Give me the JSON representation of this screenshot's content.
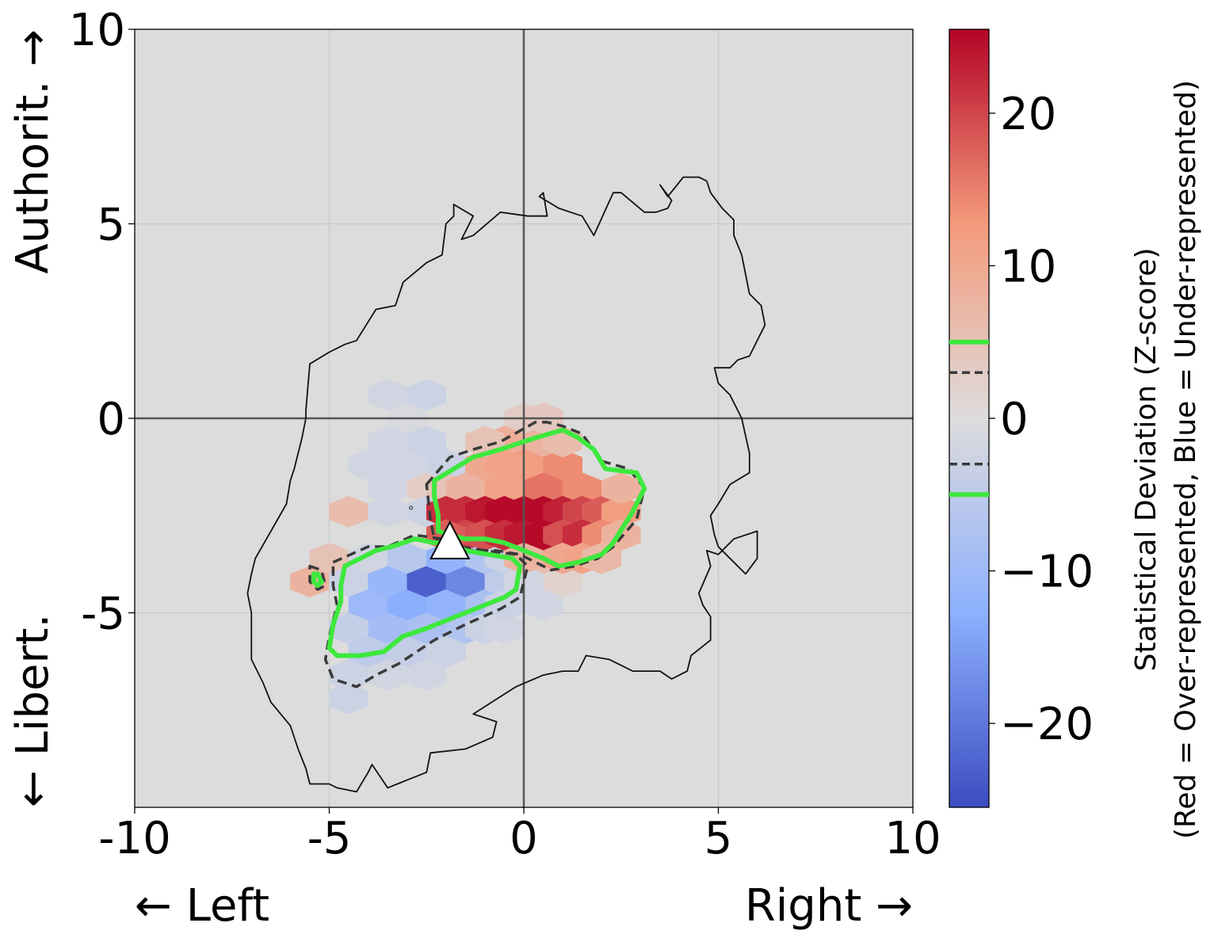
{
  "chart_data": {
    "type": "heatmap",
    "subtype": "hexbin",
    "xlim": [
      -10,
      10
    ],
    "ylim": [
      -10,
      10
    ],
    "x_ticks": [
      "-10",
      "-5",
      "0",
      "5",
      "10"
    ],
    "y_ticks": [
      "-5",
      "0",
      "5",
      "10"
    ],
    "x_tick_values": [
      -10,
      -5,
      0,
      5,
      10
    ],
    "y_tick_values": [
      -5,
      0,
      5,
      10
    ],
    "x_label_left": "← Left",
    "x_label_right": "Right →",
    "y_label_top": "Authorit. →",
    "y_label_bottom": "← Libert.",
    "grid": true,
    "background": "#dcdcdc",
    "zero_lines": true,
    "colormap": "coolwarm",
    "colorbar": {
      "range": [
        -25.5,
        25.5
      ],
      "ticks": [
        20,
        10,
        0,
        -10,
        -20
      ],
      "tick_labels": [
        "20",
        "10",
        "0",
        "−10",
        "−20"
      ],
      "label_line1": "Statistical Deviation (Z-score)",
      "label_line2": "(Red = Over-represented, Blue = Under-represented)",
      "threshold_solid": 5,
      "threshold_dashed": 3
    },
    "hex_cells": [
      [
        -3.5,
        0.6,
        -2
      ],
      [
        -3.5,
        -0.6,
        -2
      ],
      [
        -3.0,
        0.0,
        -1
      ],
      [
        -2.5,
        0.6,
        -3
      ],
      [
        -2.5,
        -0.6,
        -3
      ],
      [
        -4.0,
        -1.2,
        -2
      ],
      [
        -3.0,
        -1.2,
        -2
      ],
      [
        -2.0,
        -1.2,
        -3
      ],
      [
        -3.5,
        -1.8,
        -2
      ],
      [
        -2.5,
        -1.8,
        3
      ],
      [
        -4.5,
        -2.4,
        6
      ],
      [
        -3.5,
        -2.4,
        -2
      ],
      [
        -2.5,
        -2.4,
        -3
      ],
      [
        -5.0,
        -3.6,
        5
      ],
      [
        -5.5,
        -4.2,
        8
      ],
      [
        -4.5,
        -4.2,
        -3
      ],
      [
        -4.0,
        -3.6,
        -2
      ],
      [
        -3.0,
        -3.6,
        -6
      ],
      [
        -4.0,
        -4.8,
        -10
      ],
      [
        -3.5,
        -4.2,
        -11
      ],
      [
        -3.0,
        -4.8,
        -13
      ],
      [
        -2.5,
        -4.2,
        -23
      ],
      [
        -2.0,
        -4.8,
        -12
      ],
      [
        -1.5,
        -4.2,
        -18
      ],
      [
        -1.0,
        -4.8,
        -8
      ],
      [
        -0.5,
        -4.2,
        -5
      ],
      [
        -2.0,
        -3.6,
        -12
      ],
      [
        -1.0,
        -3.6,
        -7
      ],
      [
        -3.5,
        -5.4,
        -9
      ],
      [
        -2.5,
        -5.4,
        -8
      ],
      [
        -1.5,
        -5.4,
        -7
      ],
      [
        -4.5,
        -5.4,
        -4
      ],
      [
        -4.0,
        -6.0,
        -5
      ],
      [
        -3.0,
        -6.0,
        -4
      ],
      [
        -2.0,
        -6.0,
        -3
      ],
      [
        -1.0,
        -5.4,
        -3
      ],
      [
        -0.5,
        -5.4,
        -2
      ],
      [
        -4.5,
        -6.6,
        -3
      ],
      [
        -3.5,
        -6.6,
        -2
      ],
      [
        -2.5,
        -6.6,
        -2
      ],
      [
        -4.5,
        -7.2,
        -3
      ],
      [
        -0.5,
        -3.6,
        -3
      ],
      [
        0.5,
        -3.6,
        6
      ],
      [
        1.0,
        -4.2,
        2
      ],
      [
        0.0,
        -4.2,
        -2
      ],
      [
        0.5,
        -4.8,
        -2
      ],
      [
        -0.5,
        -4.8,
        -3
      ],
      [
        0.0,
        0.0,
        3
      ],
      [
        -0.5,
        -0.6,
        9
      ],
      [
        0.5,
        -0.6,
        8
      ],
      [
        -1.0,
        -1.2,
        10
      ],
      [
        0.0,
        -1.2,
        12
      ],
      [
        1.0,
        -1.2,
        14
      ],
      [
        -2.0,
        -1.8,
        5
      ],
      [
        -1.5,
        -1.8,
        8
      ],
      [
        -0.5,
        -1.8,
        11
      ],
      [
        0.5,
        -1.8,
        16
      ],
      [
        1.5,
        -1.8,
        14
      ],
      [
        -0.5,
        -1.2,
        11
      ],
      [
        -2.0,
        -2.4,
        22
      ],
      [
        -1.5,
        -2.4,
        22
      ],
      [
        -1.0,
        -2.4,
        24
      ],
      [
        -0.5,
        -2.4,
        25
      ],
      [
        0.0,
        -2.4,
        25
      ],
      [
        0.5,
        -2.4,
        25
      ],
      [
        1.0,
        -2.4,
        23
      ],
      [
        1.5,
        -2.4,
        20
      ],
      [
        2.0,
        -2.4,
        18
      ],
      [
        2.5,
        -2.4,
        12
      ],
      [
        -1.5,
        -3.0,
        20
      ],
      [
        -1.0,
        -3.0,
        19
      ],
      [
        -0.5,
        -3.0,
        22
      ],
      [
        0.0,
        -3.0,
        24
      ],
      [
        0.5,
        -3.0,
        25
      ],
      [
        1.0,
        -3.0,
        19
      ],
      [
        1.5,
        -3.0,
        22
      ],
      [
        2.0,
        -3.0,
        14
      ],
      [
        2.5,
        -3.0,
        8
      ],
      [
        -2.0,
        -3.0,
        18
      ],
      [
        0.0,
        -3.6,
        8
      ],
      [
        1.0,
        -3.6,
        10
      ],
      [
        1.5,
        -3.6,
        11
      ],
      [
        2.0,
        -3.6,
        7
      ],
      [
        2.5,
        -1.8,
        8
      ],
      [
        1.0,
        -0.6,
        6
      ],
      [
        0.5,
        0.0,
        4
      ],
      [
        -1.0,
        -0.6,
        5
      ]
    ],
    "outer_contour": [
      [
        -4.8,
        -9.5
      ],
      [
        -4.3,
        -9.6
      ],
      [
        -4.0,
        -9.1
      ],
      [
        -3.9,
        -8.9
      ],
      [
        -3.5,
        -9.5
      ],
      [
        -3.0,
        -9.3
      ],
      [
        -2.5,
        -9.1
      ],
      [
        -2.4,
        -8.6
      ],
      [
        -1.5,
        -8.5
      ],
      [
        -0.8,
        -8.2
      ],
      [
        -0.7,
        -7.8
      ],
      [
        -1.3,
        -7.6
      ],
      [
        -0.2,
        -6.9
      ],
      [
        0.5,
        -6.6
      ],
      [
        1.0,
        -6.5
      ],
      [
        1.4,
        -6.5
      ],
      [
        1.6,
        -6.1
      ],
      [
        2.2,
        -6.2
      ],
      [
        2.8,
        -6.5
      ],
      [
        3.5,
        -6.5
      ],
      [
        3.8,
        -6.7
      ],
      [
        4.2,
        -6.5
      ],
      [
        4.3,
        -6.1
      ],
      [
        4.8,
        -5.7
      ],
      [
        4.8,
        -5.1
      ],
      [
        4.6,
        -4.8
      ],
      [
        4.5,
        -4.5
      ],
      [
        4.8,
        -3.8
      ],
      [
        4.7,
        -3.4
      ],
      [
        5.0,
        -3.5
      ],
      [
        5.4,
        -3.1
      ],
      [
        6.0,
        -2.9
      ],
      [
        6.0,
        -3.6
      ],
      [
        5.7,
        -4.0
      ],
      [
        5.3,
        -3.6
      ],
      [
        5.0,
        -3.3
      ],
      [
        4.9,
        -3.0
      ],
      [
        4.8,
        -2.5
      ],
      [
        5.0,
        -2.2
      ],
      [
        5.3,
        -1.7
      ],
      [
        5.8,
        -1.4
      ],
      [
        5.8,
        -0.9
      ],
      [
        5.6,
        0.0
      ],
      [
        5.3,
        0.6
      ],
      [
        5.0,
        0.9
      ],
      [
        4.9,
        1.3
      ],
      [
        5.3,
        1.3
      ],
      [
        5.5,
        1.5
      ],
      [
        5.8,
        1.6
      ],
      [
        6.2,
        2.4
      ],
      [
        6.1,
        2.9
      ],
      [
        5.8,
        3.2
      ],
      [
        5.6,
        4.2
      ],
      [
        5.4,
        4.7
      ],
      [
        5.4,
        5.1
      ],
      [
        5.1,
        5.4
      ],
      [
        4.8,
        5.8
      ],
      [
        4.7,
        6.1
      ],
      [
        4.5,
        6.2
      ],
      [
        4.1,
        6.2
      ],
      [
        3.7,
        5.7
      ],
      [
        3.5,
        6.0
      ],
      [
        3.8,
        5.6
      ],
      [
        3.7,
        5.4
      ],
      [
        3.4,
        5.3
      ],
      [
        3.1,
        5.3
      ],
      [
        2.5,
        5.8
      ],
      [
        2.3,
        5.8
      ],
      [
        1.8,
        4.7
      ],
      [
        1.5,
        5.2
      ],
      [
        1.2,
        5.3
      ],
      [
        0.9,
        5.4
      ],
      [
        0.4,
        5.7
      ],
      [
        0.5,
        5.8
      ],
      [
        0.6,
        5.2
      ],
      [
        0.1,
        5.2
      ],
      [
        -0.6,
        5.3
      ],
      [
        -1.3,
        4.7
      ],
      [
        -1.6,
        4.6
      ],
      [
        -1.3,
        5.2
      ],
      [
        -1.8,
        5.5
      ],
      [
        -1.8,
        5.2
      ],
      [
        -2.0,
        5.0
      ],
      [
        -2.1,
        4.2
      ],
      [
        -2.5,
        4.0
      ],
      [
        -3.1,
        3.5
      ],
      [
        -3.3,
        2.9
      ],
      [
        -3.8,
        2.8
      ],
      [
        -4.3,
        2.0
      ],
      [
        -4.6,
        1.9
      ],
      [
        -5.0,
        1.7
      ],
      [
        -5.5,
        1.4
      ],
      [
        -5.6,
        0.2
      ],
      [
        -5.6,
        0.0
      ],
      [
        -5.7,
        -0.5
      ],
      [
        -5.9,
        -1.3
      ],
      [
        -6.0,
        -1.6
      ],
      [
        -6.1,
        -2.2
      ],
      [
        -6.5,
        -2.9
      ],
      [
        -6.9,
        -3.6
      ],
      [
        -7.0,
        -4.0
      ],
      [
        -7.1,
        -4.5
      ],
      [
        -7.0,
        -5.0
      ],
      [
        -7.0,
        -6.2
      ],
      [
        -6.7,
        -6.8
      ],
      [
        -6.5,
        -7.3
      ],
      [
        -6.0,
        -7.9
      ],
      [
        -5.8,
        -8.5
      ],
      [
        -5.6,
        -9.0
      ],
      [
        -5.5,
        -9.4
      ],
      [
        -5.0,
        -9.4
      ]
    ],
    "green_contours": [
      [
        [
          -2.3,
          -1.6
        ],
        [
          -1.3,
          -1.0
        ],
        [
          -0.6,
          -0.8
        ],
        [
          0.3,
          -0.5
        ],
        [
          1.0,
          -0.3
        ],
        [
          1.4,
          -0.5
        ],
        [
          1.8,
          -0.8
        ],
        [
          2.1,
          -1.3
        ],
        [
          2.9,
          -1.4
        ],
        [
          3.1,
          -1.8
        ],
        [
          2.8,
          -2.4
        ],
        [
          2.3,
          -3.2
        ],
        [
          2.0,
          -3.5
        ],
        [
          1.4,
          -3.7
        ],
        [
          0.9,
          -3.8
        ],
        [
          0.5,
          -3.6
        ],
        [
          0.0,
          -3.4
        ],
        [
          -0.5,
          -3.2
        ],
        [
          -1.0,
          -3.1
        ],
        [
          -1.5,
          -3.1
        ],
        [
          -1.9,
          -3.0
        ],
        [
          -2.2,
          -2.9
        ],
        [
          -2.2,
          -2.5
        ],
        [
          -2.3,
          -2.0
        ]
      ],
      [
        [
          -4.6,
          -3.8
        ],
        [
          -3.8,
          -3.4
        ],
        [
          -3.4,
          -3.3
        ],
        [
          -2.8,
          -3.1
        ],
        [
          -2.3,
          -3.2
        ],
        [
          -1.8,
          -3.2
        ],
        [
          -1.5,
          -3.4
        ],
        [
          -0.9,
          -3.5
        ],
        [
          -0.3,
          -3.6
        ],
        [
          -0.1,
          -3.8
        ],
        [
          -0.2,
          -4.4
        ],
        [
          -0.5,
          -4.6
        ],
        [
          -1.5,
          -5.0
        ],
        [
          -2.5,
          -5.4
        ],
        [
          -3.1,
          -5.6
        ],
        [
          -3.6,
          -6.0
        ],
        [
          -4.2,
          -6.1
        ],
        [
          -4.8,
          -6.1
        ],
        [
          -5.0,
          -5.9
        ],
        [
          -4.9,
          -5.3
        ],
        [
          -4.7,
          -4.7
        ],
        [
          -4.7,
          -4.3
        ]
      ],
      [
        [
          -5.4,
          -4.0
        ],
        [
          -5.3,
          -4.0
        ],
        [
          -5.2,
          -4.2
        ],
        [
          -5.3,
          -4.3
        ],
        [
          -5.4,
          -4.2
        ]
      ]
    ],
    "dashed_contours": [
      [
        [
          -2.5,
          -1.7
        ],
        [
          -1.9,
          -1.0
        ],
        [
          -1.3,
          -0.8
        ],
        [
          -0.6,
          -0.6
        ],
        [
          0.3,
          -0.1
        ],
        [
          0.6,
          -0.1
        ],
        [
          1.0,
          -0.2
        ],
        [
          1.5,
          -0.4
        ],
        [
          2.0,
          -1.1
        ],
        [
          2.7,
          -1.3
        ],
        [
          3.1,
          -1.8
        ],
        [
          2.9,
          -2.6
        ],
        [
          2.3,
          -3.3
        ],
        [
          1.9,
          -3.6
        ],
        [
          1.3,
          -3.8
        ],
        [
          0.7,
          -3.9
        ],
        [
          -0.1,
          -3.5
        ],
        [
          -0.7,
          -3.4
        ],
        [
          -1.3,
          -3.4
        ],
        [
          -1.9,
          -3.3
        ],
        [
          -2.3,
          -3.1
        ],
        [
          -2.4,
          -2.6
        ]
      ],
      [
        [
          -4.9,
          -3.7
        ],
        [
          -4.0,
          -3.3
        ],
        [
          -3.5,
          -3.3
        ],
        [
          -2.8,
          -3.0
        ],
        [
          -2.1,
          -3.1
        ],
        [
          -1.6,
          -3.3
        ],
        [
          -1.0,
          -3.4
        ],
        [
          -0.2,
          -3.5
        ],
        [
          0.1,
          -3.8
        ],
        [
          -0.1,
          -4.6
        ],
        [
          -0.6,
          -4.9
        ],
        [
          -1.5,
          -5.3
        ],
        [
          -2.3,
          -5.7
        ],
        [
          -3.2,
          -6.3
        ],
        [
          -3.8,
          -6.6
        ],
        [
          -4.3,
          -6.9
        ],
        [
          -4.9,
          -6.7
        ],
        [
          -5.1,
          -6.2
        ],
        [
          -5.0,
          -5.6
        ],
        [
          -4.8,
          -4.8
        ],
        [
          -4.9,
          -4.3
        ]
      ],
      [
        [
          -5.5,
          -3.8
        ],
        [
          -5.2,
          -3.9
        ],
        [
          -5.1,
          -4.3
        ],
        [
          -5.3,
          -4.4
        ],
        [
          -5.5,
          -4.2
        ]
      ]
    ],
    "marker": {
      "shape": "triangle",
      "x": -1.9,
      "y": -3.3,
      "color": "#ffffff"
    },
    "small_point": {
      "x": -2.9,
      "y": -2.3
    }
  }
}
